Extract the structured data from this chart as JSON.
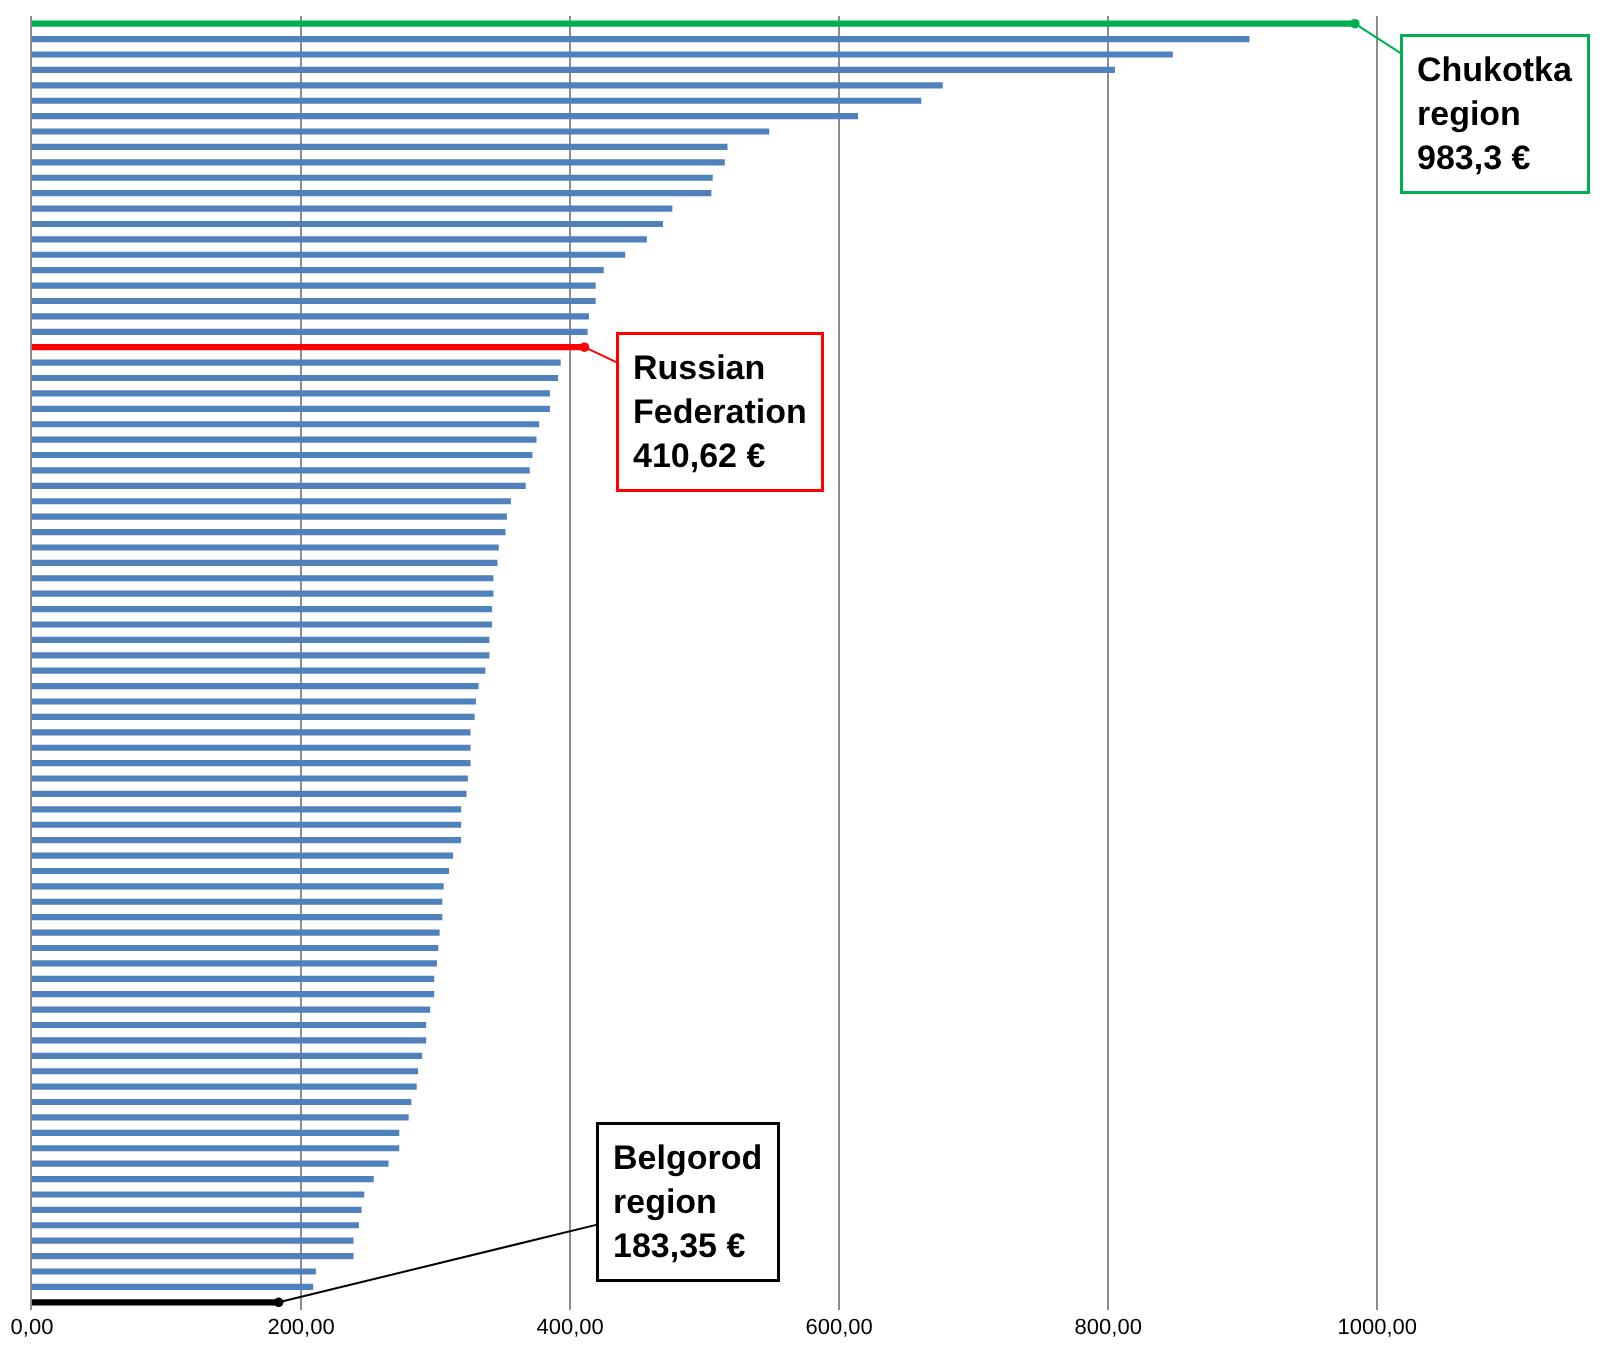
{
  "chart_data": {
    "type": "bar",
    "orientation": "horizontal",
    "categories": [
      null,
      null,
      null,
      null,
      null,
      null,
      null,
      null,
      null,
      null,
      null,
      null,
      null,
      null,
      null,
      null,
      null,
      null,
      null,
      null,
      null,
      null,
      null,
      null,
      null,
      null,
      null,
      null,
      null,
      null,
      null,
      null,
      null,
      null,
      null,
      null,
      null,
      null,
      null,
      null,
      null,
      null,
      null,
      null,
      null,
      null,
      null,
      null,
      null,
      null,
      null,
      null,
      null,
      null,
      null,
      null,
      null,
      null,
      null,
      null,
      null,
      null,
      null,
      null,
      null,
      null,
      null,
      null,
      null,
      null,
      null,
      null,
      null,
      null,
      null,
      null,
      null,
      null,
      null,
      null,
      null,
      null,
      null,
      null
    ],
    "values": [
      983.3,
      905,
      848,
      805,
      677,
      661,
      614,
      548,
      517,
      515,
      506,
      505,
      476,
      469,
      457,
      441,
      425,
      419,
      419,
      414,
      413,
      410.62,
      393,
      391,
      385,
      385,
      377,
      375,
      372,
      370,
      367,
      356,
      353,
      352,
      347,
      346,
      343,
      343,
      342,
      342,
      340,
      340,
      337,
      332,
      330,
      329,
      326,
      326,
      326,
      324,
      323,
      319,
      319,
      319,
      313,
      310,
      306,
      305,
      305,
      303,
      302,
      301,
      299,
      299,
      296,
      293,
      293,
      290,
      287,
      286,
      282,
      280,
      273,
      273,
      265,
      254,
      247,
      245,
      243,
      239,
      239,
      211,
      209,
      183.35
    ],
    "colors": [
      "#00b050",
      "#4f81bd",
      "#4f81bd",
      "#4f81bd",
      "#4f81bd",
      "#4f81bd",
      "#4f81bd",
      "#4f81bd",
      "#4f81bd",
      "#4f81bd",
      "#4f81bd",
      "#4f81bd",
      "#4f81bd",
      "#4f81bd",
      "#4f81bd",
      "#4f81bd",
      "#4f81bd",
      "#4f81bd",
      "#4f81bd",
      "#4f81bd",
      "#4f81bd",
      "#ff0000",
      "#4f81bd",
      "#4f81bd",
      "#4f81bd",
      "#4f81bd",
      "#4f81bd",
      "#4f81bd",
      "#4f81bd",
      "#4f81bd",
      "#4f81bd",
      "#4f81bd",
      "#4f81bd",
      "#4f81bd",
      "#4f81bd",
      "#4f81bd",
      "#4f81bd",
      "#4f81bd",
      "#4f81bd",
      "#4f81bd",
      "#4f81bd",
      "#4f81bd",
      "#4f81bd",
      "#4f81bd",
      "#4f81bd",
      "#4f81bd",
      "#4f81bd",
      "#4f81bd",
      "#4f81bd",
      "#4f81bd",
      "#4f81bd",
      "#4f81bd",
      "#4f81bd",
      "#4f81bd",
      "#4f81bd",
      "#4f81bd",
      "#4f81bd",
      "#4f81bd",
      "#4f81bd",
      "#4f81bd",
      "#4f81bd",
      "#4f81bd",
      "#4f81bd",
      "#4f81bd",
      "#4f81bd",
      "#4f81bd",
      "#4f81bd",
      "#4f81bd",
      "#4f81bd",
      "#4f81bd",
      "#4f81bd",
      "#4f81bd",
      "#4f81bd",
      "#4f81bd",
      "#4f81bd",
      "#4f81bd",
      "#4f81bd",
      "#4f81bd",
      "#4f81bd",
      "#4f81bd",
      "#4f81bd",
      "#4f81bd",
      "#4f81bd",
      "#000000"
    ],
    "xlim": [
      0,
      1170
    ],
    "xticks": [
      {
        "value": 0,
        "label": "0,00"
      },
      {
        "value": 200,
        "label": "200,00"
      },
      {
        "value": 400,
        "label": "400,00"
      },
      {
        "value": 600,
        "label": "600,00"
      },
      {
        "value": 800,
        "label": "800,00"
      },
      {
        "value": 1000,
        "label": "1000,00"
      }
    ],
    "grid": "x",
    "tick_labels": "x",
    "annotations": [
      "Chukotka\nregion\n983,3 €",
      "Russian\nFederation\n410,62 €",
      "Belgorod\nregion\n183,35 €"
    ]
  }
}
